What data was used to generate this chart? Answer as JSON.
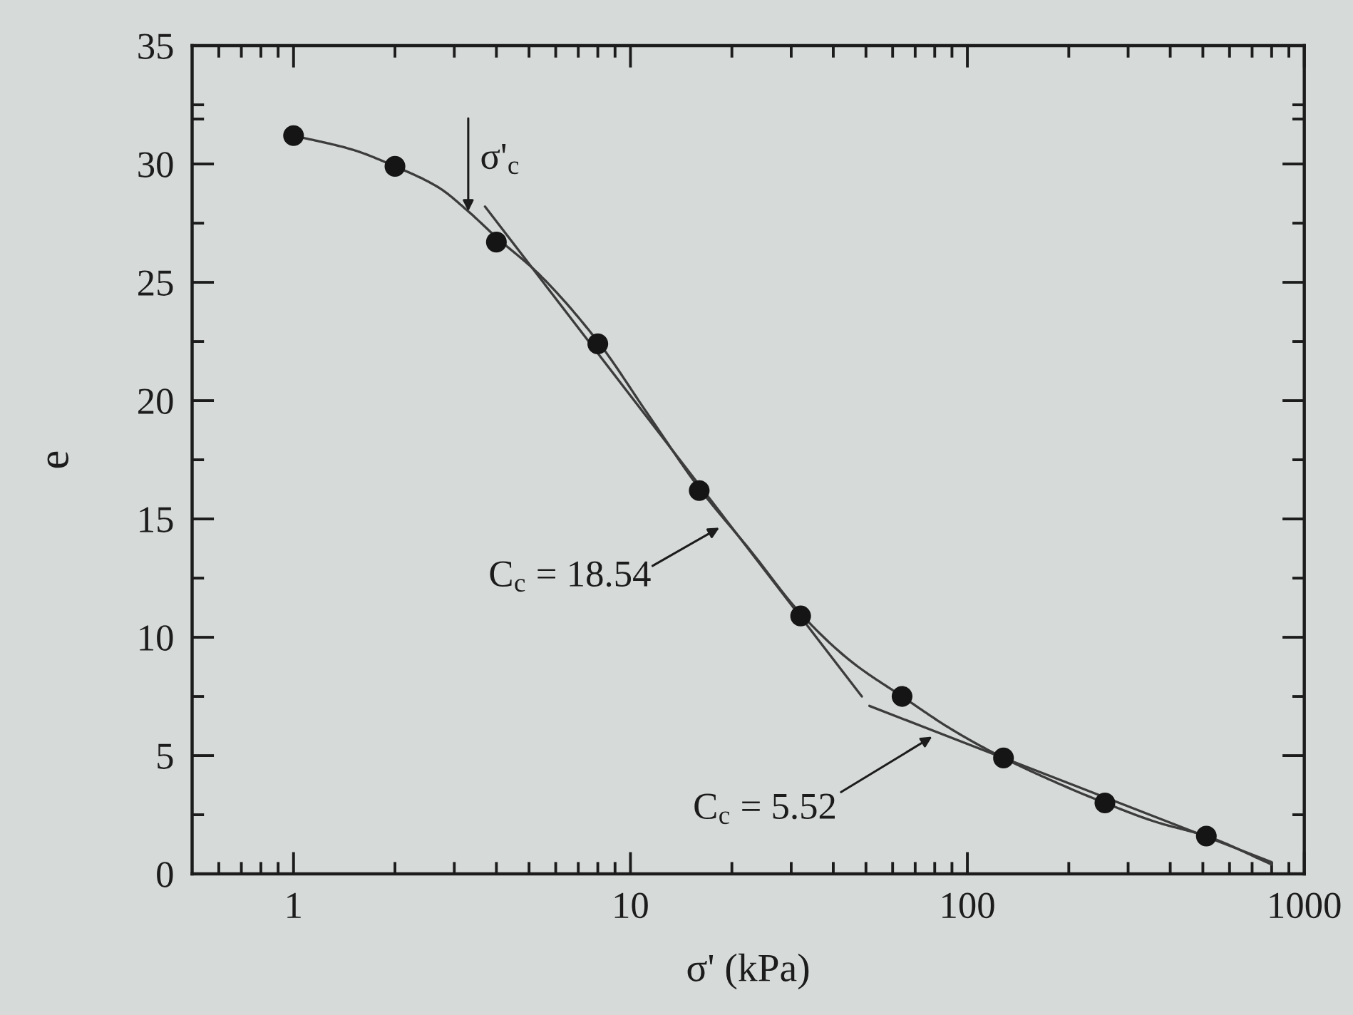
{
  "chart_data": {
    "type": "scatter",
    "xlabel": "σ' (kPa)",
    "ylabel": "e",
    "log": "x",
    "grid": false,
    "xlim": [
      0.5,
      1000
    ],
    "xticks": [
      {
        "value": 0.6,
        "label": null
      },
      {
        "value": 0.7,
        "label": null
      },
      {
        "value": 0.8,
        "label": null
      },
      {
        "value": 0.9,
        "label": null
      },
      1,
      {
        "value": 2,
        "label": null
      },
      {
        "value": 3,
        "label": null
      },
      {
        "value": 4,
        "label": null
      },
      {
        "value": 5,
        "label": null
      },
      {
        "value": 6,
        "label": null
      },
      {
        "value": 7,
        "label": null
      },
      {
        "value": 8,
        "label": null
      },
      {
        "value": 9,
        "label": null
      },
      10,
      {
        "value": 20,
        "label": null
      },
      {
        "value": 30,
        "label": null
      },
      {
        "value": 40,
        "label": null
      },
      {
        "value": 50,
        "label": null
      },
      {
        "value": 60,
        "label": null
      },
      {
        "value": 70,
        "label": null
      },
      {
        "value": 80,
        "label": null
      },
      {
        "value": 90,
        "label": null
      },
      100,
      {
        "value": 200,
        "label": null
      },
      {
        "value": 300,
        "label": null
      },
      {
        "value": 400,
        "label": null
      },
      {
        "value": 500,
        "label": null
      },
      {
        "value": 600,
        "label": null
      },
      {
        "value": 700,
        "label": null
      },
      {
        "value": 800,
        "label": null
      },
      {
        "value": 900,
        "label": null
      },
      1000
    ],
    "ylim": [
      0,
      35
    ],
    "yticks": [
      0,
      {
        "value": 2.5,
        "label": null
      },
      5,
      {
        "value": 7.5,
        "label": null
      },
      10,
      {
        "value": 12.5,
        "label": null
      },
      15,
      {
        "value": 17.5,
        "label": null
      },
      20,
      {
        "value": 22.5,
        "label": null
      },
      25,
      {
        "value": 27.5,
        "label": null
      },
      30,
      {
        "value": 31.9,
        "label": null
      },
      {
        "value": 32.5,
        "label": null
      },
      35
    ],
    "series": [
      {
        "type": "line",
        "color": "#3c3c3c",
        "line_style": "solid",
        "x": [
          1,
          1.5,
          2,
          2.7,
          3.3,
          4,
          5.3,
          8,
          11.3,
          16,
          22.6,
          32,
          45,
          64,
          90,
          128,
          181,
          256,
          362,
          512,
          800
        ],
        "values": [
          31.2,
          30.6,
          29.9,
          29.0,
          28.0,
          26.9,
          25.4,
          22.5,
          19.4,
          16.3,
          13.7,
          11.0,
          9.0,
          7.5,
          6.1,
          4.9,
          3.9,
          3.0,
          2.2,
          1.6,
          0.4
        ]
      },
      {
        "type": "line",
        "color": "#3c3c3c",
        "line_style": "solid",
        "x": [
          3.7,
          48.6
        ],
        "values": [
          28.2,
          7.5
        ]
      },
      {
        "type": "line",
        "color": "#3c3c3c",
        "line_style": "solid",
        "x": [
          51.2,
          800
        ],
        "values": [
          7.1,
          0.5
        ]
      },
      {
        "color": "#151515",
        "marker": "circle",
        "x": [
          1,
          2,
          4,
          8,
          16,
          32,
          64,
          128,
          256,
          512
        ],
        "values": [
          31.2,
          29.9,
          26.7,
          22.4,
          16.2,
          10.9,
          7.5,
          4.9,
          3.0,
          1.6
        ]
      }
    ],
    "annotations": [
      {
        "text": "σ'$_{c}$",
        "x": 3.3,
        "y": 28.0
      },
      "C$_{c}$ = 18.54",
      {
        "text": "C$_{c}$ = 5.52",
        "x": 78.6,
        "y": 5.8
      }
    ]
  }
}
